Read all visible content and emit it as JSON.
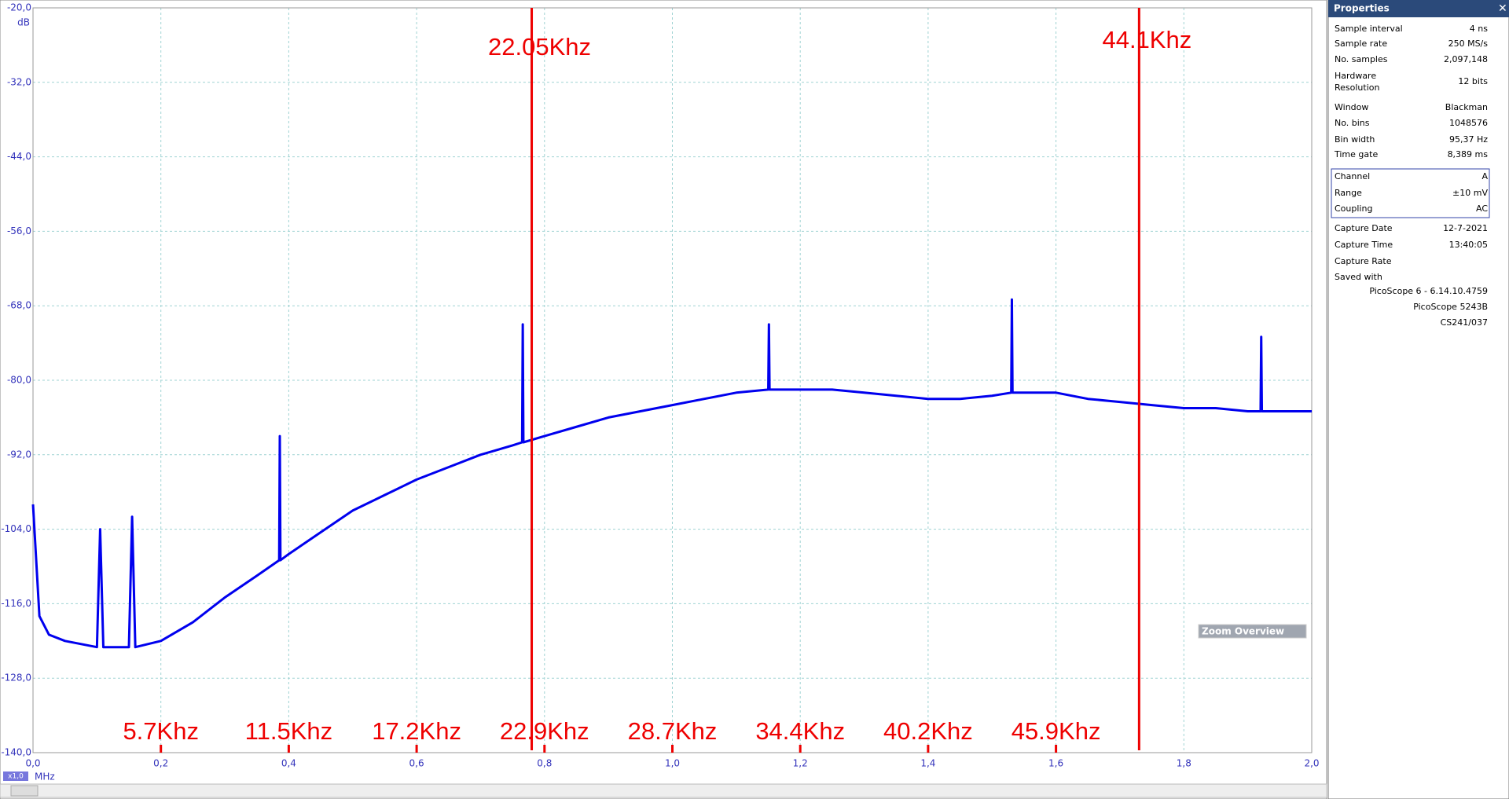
{
  "chart_data": {
    "type": "line",
    "y_label": "dB",
    "x_label": "MHz",
    "x_zoom": "x1,0",
    "xlim": [
      0,
      2.0
    ],
    "ylim": [
      -140,
      -20
    ],
    "xticks": [
      {
        "value": 0,
        "label": "0,0"
      },
      {
        "value": 0.2,
        "label": "0,2"
      },
      {
        "value": 0.4,
        "label": "0,4"
      },
      {
        "value": 0.6,
        "label": "0,6"
      },
      {
        "value": 0.8,
        "label": "0,8"
      },
      {
        "value": 1.0,
        "label": "1,0"
      },
      {
        "value": 1.2,
        "label": "1,2"
      },
      {
        "value": 1.4,
        "label": "1,4"
      },
      {
        "value": 1.6,
        "label": "1,6"
      },
      {
        "value": 1.8,
        "label": "1,8"
      },
      {
        "value": 2.0,
        "label": "2,0"
      }
    ],
    "yticks": [
      {
        "value": -20,
        "label": "-20,0"
      },
      {
        "value": -32,
        "label": "-32,0"
      },
      {
        "value": -44,
        "label": "-44,0"
      },
      {
        "value": -56,
        "label": "-56,0"
      },
      {
        "value": -68,
        "label": "-68,0"
      },
      {
        "value": -80,
        "label": "-80,0"
      },
      {
        "value": -92,
        "label": "-92,0"
      },
      {
        "value": -104,
        "label": "-104,0"
      },
      {
        "value": -116,
        "label": "-116,0"
      },
      {
        "value": -128,
        "label": "-128,0"
      },
      {
        "value": -140,
        "label": "-140,0"
      }
    ],
    "grid": true,
    "x": [
      0,
      0.01,
      0.025,
      0.05,
      0.1,
      0.105,
      0.11,
      0.15,
      0.155,
      0.16,
      0.2,
      0.25,
      0.3,
      0.35,
      0.385,
      0.386,
      0.387,
      0.4,
      0.45,
      0.5,
      0.55,
      0.6,
      0.65,
      0.7,
      0.75,
      0.765,
      0.766,
      0.767,
      0.8,
      0.85,
      0.9,
      0.95,
      1.0,
      1.05,
      1.1,
      1.15,
      1.151,
      1.152,
      1.2,
      1.25,
      1.3,
      1.35,
      1.4,
      1.45,
      1.5,
      1.53,
      1.531,
      1.532,
      1.55,
      1.6,
      1.65,
      1.7,
      1.75,
      1.8,
      1.85,
      1.9,
      1.92,
      1.921,
      1.922,
      1.95,
      2.0
    ],
    "series": [
      {
        "color": "#0000ee",
        "values": [
          -100,
          -118,
          -121,
          -122,
          -123,
          -104,
          -123,
          -123,
          -102,
          -123,
          -122,
          -119,
          -115,
          -111.5,
          -109,
          -89,
          -109,
          -108,
          -104.5,
          -101,
          -98.5,
          -96,
          -94,
          -92,
          -90.5,
          -90,
          -71,
          -90,
          -89,
          -87.5,
          -86,
          -85,
          -84,
          -83,
          -82,
          -81.5,
          -71,
          -81.5,
          -81.5,
          -81.5,
          -82,
          -82.5,
          -83,
          -83,
          -82.5,
          -82,
          -67,
          -82,
          -82,
          -82,
          -83,
          -83.5,
          -84,
          -84.5,
          -84.5,
          -85,
          -85,
          -73,
          -85,
          -85,
          -85
        ]
      }
    ],
    "annotation_color": "#ee0000",
    "markers": [
      {
        "label": "22.05Khz",
        "x": 0.78
      },
      {
        "label": "44.1Khz",
        "x": 1.73
      }
    ],
    "bottom_labels": [
      {
        "label": "5.7Khz",
        "x": 0.2
      },
      {
        "label": "11.5Khz",
        "x": 0.4
      },
      {
        "label": "17.2Khz",
        "x": 0.6
      },
      {
        "label": "22.9Khz",
        "x": 0.8
      },
      {
        "label": "28.7Khz",
        "x": 1.0
      },
      {
        "label": "34.4Khz",
        "x": 1.2
      },
      {
        "label": "40.2Khz",
        "x": 1.4
      },
      {
        "label": "45.9Khz",
        "x": 1.6
      }
    ]
  },
  "zoom_overview": "Zoom Overview",
  "properties": {
    "title": "Properties",
    "rows": [
      {
        "label": "Sample interval",
        "value": "4 ns"
      },
      {
        "label": "Sample rate",
        "value": "250 MS/s"
      },
      {
        "label": "No. samples",
        "value": "2,097,148"
      },
      {
        "label": "Hardware Resolution",
        "value": "12 bits"
      },
      {
        "label": "Window",
        "value": "Blackman"
      },
      {
        "label": "No. bins",
        "value": "1048576"
      },
      {
        "label": "Bin width",
        "value": "95,37 Hz"
      },
      {
        "label": "Time gate",
        "value": "8,389 ms"
      }
    ],
    "channel_rows": [
      {
        "label": "Channel",
        "value": "A"
      },
      {
        "label": "Range",
        "value": "±10 mV"
      },
      {
        "label": "Coupling",
        "value": "AC"
      }
    ],
    "capture_rows": [
      {
        "label": "Capture Date",
        "value": "12-7-2021"
      },
      {
        "label": "Capture Time",
        "value": "13:40:05"
      },
      {
        "label": "Capture Rate"
      },
      {
        "label": "Saved with"
      }
    ],
    "saved_with": [
      "PicoScope 6 - 6.14.10.4759",
      "PicoScope 5243B",
      "CS241/037"
    ]
  }
}
